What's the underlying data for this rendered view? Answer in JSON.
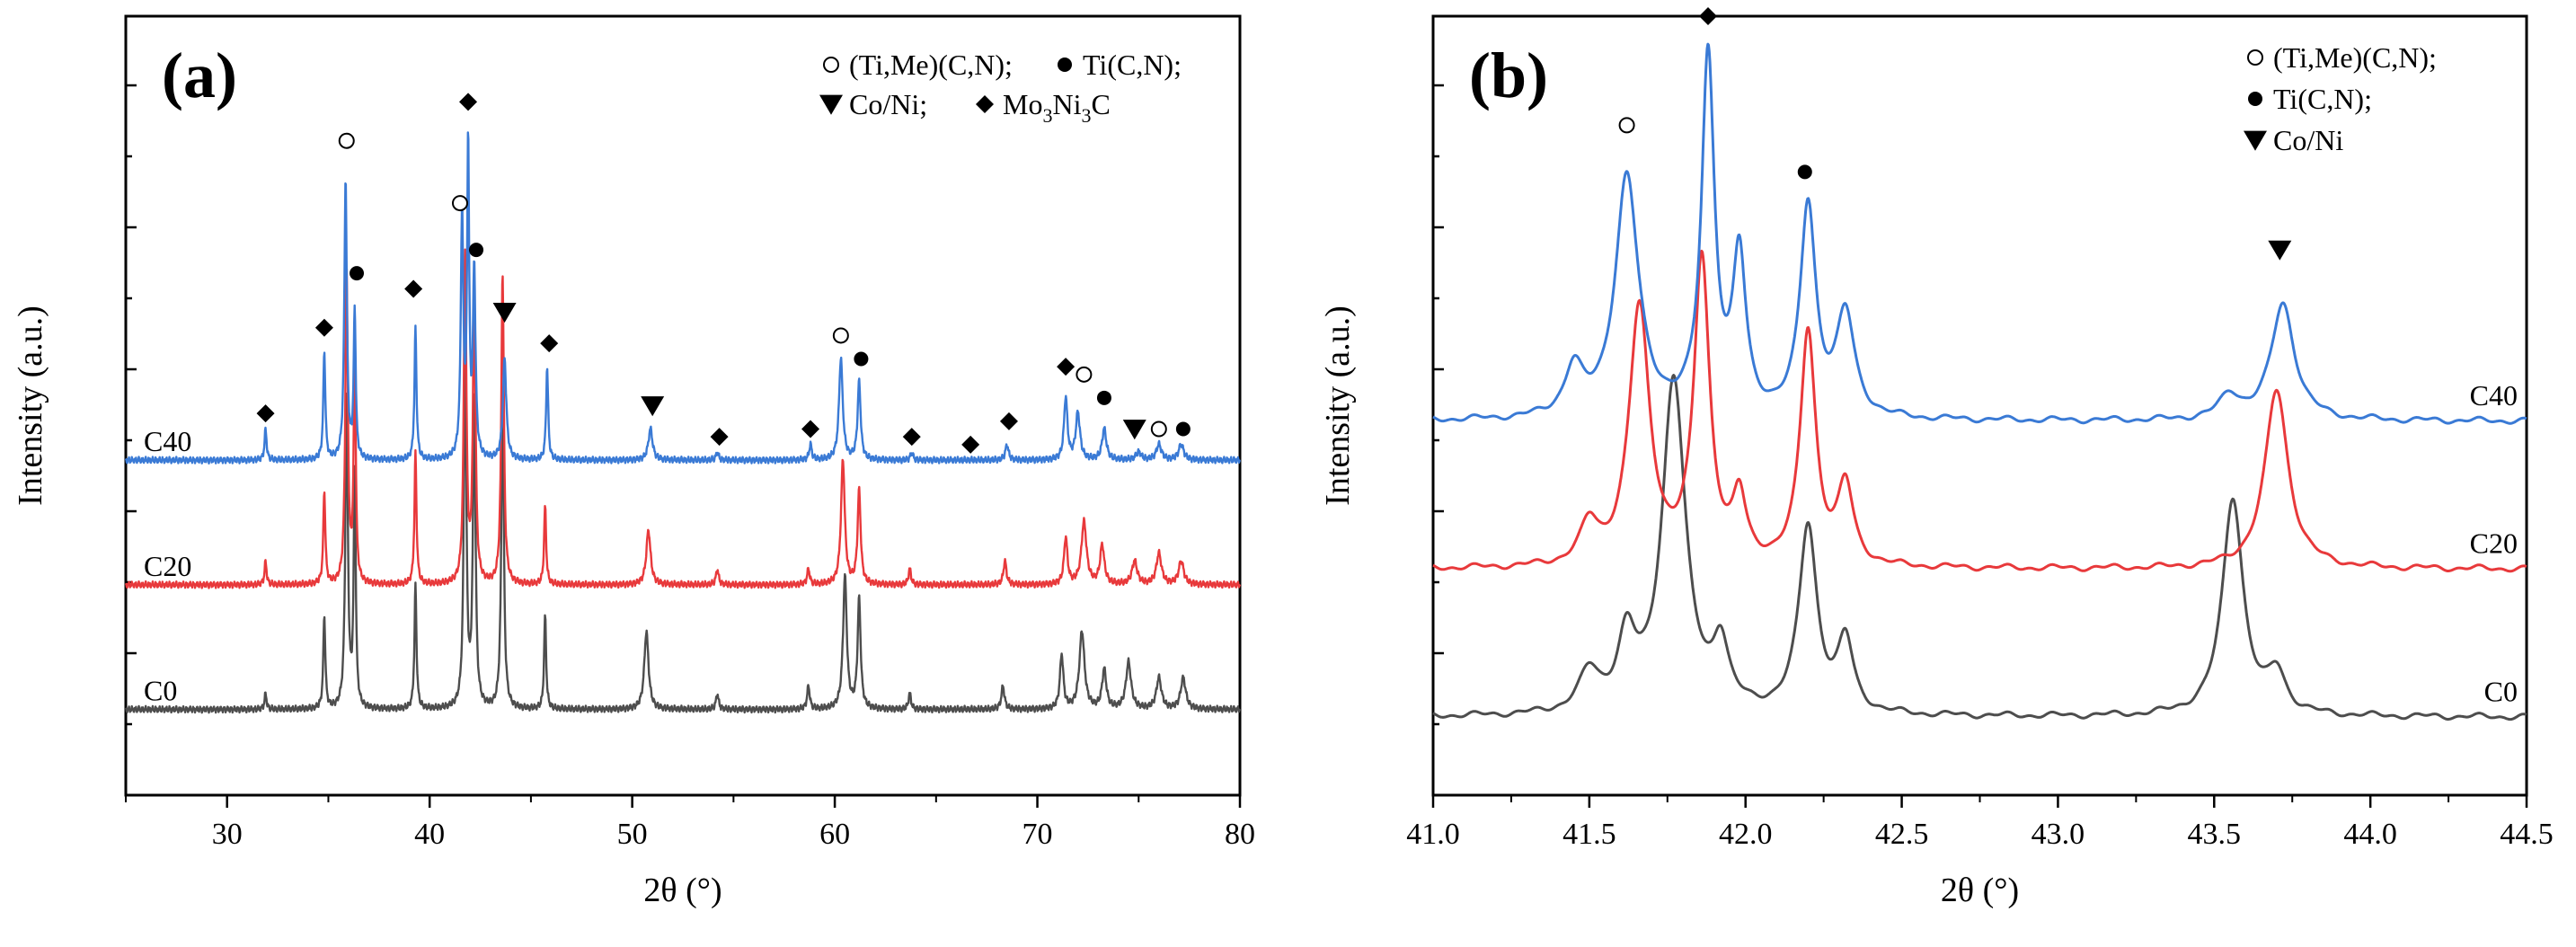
{
  "chart_data": [
    {
      "type": "line",
      "panel_label": "(a)",
      "xlabel": "2θ (°)",
      "ylabel": "Intensity (a.u.)",
      "xlim": [
        25,
        80
      ],
      "xticks": [
        "30",
        "40",
        "50",
        "60",
        "70",
        "80"
      ],
      "grid": false,
      "legend_placement": "top-right",
      "legend": [
        {
          "symbol": "open-circle",
          "prefix": "(Ti,Me)(C,N); ",
          "name": ""
        },
        {
          "symbol": "filled-circle",
          "prefix": "Ti(C,N);",
          "name": ""
        },
        {
          "symbol": "down-triangle",
          "prefix": "Co/Ni; ",
          "name": ""
        },
        {
          "symbol": "diamond",
          "prefix": "Mo",
          "sub1": "3",
          "mid": "Ni",
          "sub2": "3",
          "suffix": "C"
        }
      ],
      "series": [
        {
          "name": "C0",
          "color": "#4d4d4d",
          "baseline": 0.11,
          "peaks": [
            {
              "x": 31.9,
              "h": 0.02,
              "w": 0.12
            },
            {
              "x": 34.8,
              "h": 0.12,
              "w": 0.12
            },
            {
              "x": 35.9,
              "h": 0.4,
              "w": 0.15
            },
            {
              "x": 36.3,
              "h": 0.3,
              "w": 0.12
            },
            {
              "x": 39.3,
              "h": 0.16,
              "w": 0.12
            },
            {
              "x": 41.75,
              "h": 0.45,
              "w": 0.15
            },
            {
              "x": 42.2,
              "h": 0.4,
              "w": 0.15
            },
            {
              "x": 43.6,
              "h": 0.4,
              "w": 0.15
            },
            {
              "x": 45.7,
              "h": 0.12,
              "w": 0.12
            },
            {
              "x": 50.7,
              "h": 0.1,
              "w": 0.25
            },
            {
              "x": 54.2,
              "h": 0.02,
              "w": 0.15
            },
            {
              "x": 58.7,
              "h": 0.03,
              "w": 0.15
            },
            {
              "x": 60.5,
              "h": 0.17,
              "w": 0.22
            },
            {
              "x": 61.2,
              "h": 0.14,
              "w": 0.18
            },
            {
              "x": 63.7,
              "h": 0.02,
              "w": 0.15
            },
            {
              "x": 68.3,
              "h": 0.03,
              "w": 0.18
            },
            {
              "x": 71.2,
              "h": 0.07,
              "w": 0.2
            },
            {
              "x": 72.2,
              "h": 0.1,
              "w": 0.3
            },
            {
              "x": 73.3,
              "h": 0.05,
              "w": 0.25
            },
            {
              "x": 74.5,
              "h": 0.06,
              "w": 0.3
            },
            {
              "x": 76.0,
              "h": 0.04,
              "w": 0.3
            },
            {
              "x": 77.2,
              "h": 0.04,
              "w": 0.3
            }
          ]
        },
        {
          "name": "C20",
          "color": "#e8393b",
          "baseline": 0.27,
          "peaks": [
            {
              "x": 31.9,
              "h": 0.03,
              "w": 0.12
            },
            {
              "x": 34.8,
              "h": 0.12,
              "w": 0.12
            },
            {
              "x": 35.9,
              "h": 0.4,
              "w": 0.15
            },
            {
              "x": 36.3,
              "h": 0.3,
              "w": 0.12
            },
            {
              "x": 39.3,
              "h": 0.17,
              "w": 0.12
            },
            {
              "x": 41.75,
              "h": 0.42,
              "w": 0.15
            },
            {
              "x": 42.2,
              "h": 0.38,
              "w": 0.15
            },
            {
              "x": 43.6,
              "h": 0.4,
              "w": 0.15
            },
            {
              "x": 45.7,
              "h": 0.1,
              "w": 0.12
            },
            {
              "x": 50.8,
              "h": 0.07,
              "w": 0.25
            },
            {
              "x": 54.2,
              "h": 0.02,
              "w": 0.15
            },
            {
              "x": 58.7,
              "h": 0.02,
              "w": 0.15
            },
            {
              "x": 60.4,
              "h": 0.16,
              "w": 0.22
            },
            {
              "x": 61.2,
              "h": 0.12,
              "w": 0.18
            },
            {
              "x": 63.7,
              "h": 0.02,
              "w": 0.15
            },
            {
              "x": 68.4,
              "h": 0.03,
              "w": 0.18
            },
            {
              "x": 71.4,
              "h": 0.06,
              "w": 0.2
            },
            {
              "x": 72.3,
              "h": 0.08,
              "w": 0.3
            },
            {
              "x": 73.2,
              "h": 0.05,
              "w": 0.25
            },
            {
              "x": 74.8,
              "h": 0.03,
              "w": 0.3
            },
            {
              "x": 76.0,
              "h": 0.04,
              "w": 0.3
            },
            {
              "x": 77.1,
              "h": 0.03,
              "w": 0.3
            }
          ]
        },
        {
          "name": "C40",
          "color": "#3a7ad5",
          "baseline": 0.43,
          "peaks": [
            {
              "x": 31.9,
              "h": 0.04,
              "w": 0.12
            },
            {
              "x": 34.8,
              "h": 0.14,
              "w": 0.12
            },
            {
              "x": 35.85,
              "h": 0.36,
              "w": 0.15
            },
            {
              "x": 36.3,
              "h": 0.19,
              "w": 0.12
            },
            {
              "x": 39.3,
              "h": 0.17,
              "w": 0.12
            },
            {
              "x": 41.6,
              "h": 0.31,
              "w": 0.15
            },
            {
              "x": 41.9,
              "h": 0.4,
              "w": 0.12
            },
            {
              "x": 42.2,
              "h": 0.24,
              "w": 0.15
            },
            {
              "x": 43.7,
              "h": 0.13,
              "w": 0.2
            },
            {
              "x": 45.8,
              "h": 0.12,
              "w": 0.12
            },
            {
              "x": 50.9,
              "h": 0.04,
              "w": 0.25
            },
            {
              "x": 54.2,
              "h": 0.01,
              "w": 0.15
            },
            {
              "x": 58.8,
              "h": 0.02,
              "w": 0.15
            },
            {
              "x": 60.3,
              "h": 0.13,
              "w": 0.22
            },
            {
              "x": 61.2,
              "h": 0.1,
              "w": 0.18
            },
            {
              "x": 63.8,
              "h": 0.01,
              "w": 0.15
            },
            {
              "x": 68.5,
              "h": 0.02,
              "w": 0.18
            },
            {
              "x": 71.4,
              "h": 0.08,
              "w": 0.2
            },
            {
              "x": 72.0,
              "h": 0.06,
              "w": 0.25
            },
            {
              "x": 73.3,
              "h": 0.04,
              "w": 0.25
            },
            {
              "x": 75.0,
              "h": 0.01,
              "w": 0.3
            },
            {
              "x": 76.0,
              "h": 0.02,
              "w": 0.3
            },
            {
              "x": 77.1,
              "h": 0.02,
              "w": 0.3
            }
          ]
        }
      ],
      "markers": [
        {
          "symbol": "diamond",
          "x": 31.9,
          "y": 0.49
        },
        {
          "symbol": "diamond",
          "x": 34.8,
          "y": 0.6
        },
        {
          "symbol": "open-circle",
          "x": 35.9,
          "y": 0.84
        },
        {
          "symbol": "filled-circle",
          "x": 36.4,
          "y": 0.67
        },
        {
          "symbol": "diamond",
          "x": 39.2,
          "y": 0.65
        },
        {
          "symbol": "open-circle",
          "x": 41.5,
          "y": 0.76
        },
        {
          "symbol": "diamond",
          "x": 41.9,
          "y": 0.89
        },
        {
          "symbol": "filled-circle",
          "x": 42.3,
          "y": 0.7
        },
        {
          "symbol": "down-triangle",
          "x": 43.7,
          "y": 0.62
        },
        {
          "symbol": "diamond",
          "x": 45.9,
          "y": 0.58
        },
        {
          "symbol": "down-triangle",
          "x": 51.0,
          "y": 0.5
        },
        {
          "symbol": "diamond",
          "x": 54.3,
          "y": 0.46
        },
        {
          "symbol": "diamond",
          "x": 58.8,
          "y": 0.47
        },
        {
          "symbol": "open-circle",
          "x": 60.3,
          "y": 0.59
        },
        {
          "symbol": "filled-circle",
          "x": 61.3,
          "y": 0.56
        },
        {
          "symbol": "diamond",
          "x": 63.8,
          "y": 0.46
        },
        {
          "symbol": "diamond",
          "x": 66.7,
          "y": 0.45
        },
        {
          "symbol": "diamond",
          "x": 68.6,
          "y": 0.48
        },
        {
          "symbol": "diamond",
          "x": 71.4,
          "y": 0.55
        },
        {
          "symbol": "open-circle",
          "x": 72.3,
          "y": 0.54
        },
        {
          "symbol": "filled-circle",
          "x": 73.3,
          "y": 0.51
        },
        {
          "symbol": "down-triangle",
          "x": 74.8,
          "y": 0.47
        },
        {
          "symbol": "open-circle",
          "x": 76.0,
          "y": 0.47
        },
        {
          "symbol": "filled-circle",
          "x": 77.2,
          "y": 0.47
        }
      ]
    },
    {
      "type": "line",
      "panel_label": "(b)",
      "xlabel": "2θ (°)",
      "ylabel": "Intensity (a.u.)",
      "xlim": [
        41.0,
        44.5
      ],
      "xticks": [
        "41.0",
        "41.5",
        "42.0",
        "42.5",
        "43.0",
        "43.5",
        "44.0",
        "44.5"
      ],
      "grid": false,
      "legend_placement": "top-right",
      "legend": [
        {
          "symbol": "open-circle",
          "prefix": "(Ti,Me)(C,N);"
        },
        {
          "symbol": "filled-circle",
          "prefix": "Ti(C,N);"
        },
        {
          "symbol": "down-triangle",
          "prefix": "Co/Ni"
        }
      ],
      "series": [
        {
          "name": "C0",
          "color": "#4d4d4d",
          "baseline": 0.1,
          "peaks": [
            {
              "x": 41.5,
              "h": 0.05,
              "w": 0.08
            },
            {
              "x": 41.77,
              "h": 0.43,
              "w": 0.09
            },
            {
              "x": 41.62,
              "h": 0.09,
              "w": 0.07
            },
            {
              "x": 41.92,
              "h": 0.08,
              "w": 0.06
            },
            {
              "x": 42.2,
              "h": 0.24,
              "w": 0.07
            },
            {
              "x": 42.32,
              "h": 0.09,
              "w": 0.06
            },
            {
              "x": 43.56,
              "h": 0.28,
              "w": 0.08
            },
            {
              "x": 43.7,
              "h": 0.05,
              "w": 0.07
            }
          ]
        },
        {
          "name": "C20",
          "color": "#e8393b",
          "baseline": 0.29,
          "peaks": [
            {
              "x": 41.66,
              "h": 0.33,
              "w": 0.08
            },
            {
              "x": 41.5,
              "h": 0.05,
              "w": 0.07
            },
            {
              "x": 41.86,
              "h": 0.39,
              "w": 0.06
            },
            {
              "x": 41.98,
              "h": 0.08,
              "w": 0.05
            },
            {
              "x": 42.2,
              "h": 0.3,
              "w": 0.06
            },
            {
              "x": 42.32,
              "h": 0.1,
              "w": 0.06
            },
            {
              "x": 43.7,
              "h": 0.23,
              "w": 0.09
            }
          ]
        },
        {
          "name": "C40",
          "color": "#3a7ad5",
          "baseline": 0.48,
          "peaks": [
            {
              "x": 41.62,
              "h": 0.31,
              "w": 0.09
            },
            {
              "x": 41.45,
              "h": 0.06,
              "w": 0.07
            },
            {
              "x": 41.88,
              "h": 0.46,
              "w": 0.05
            },
            {
              "x": 41.98,
              "h": 0.2,
              "w": 0.05
            },
            {
              "x": 42.2,
              "h": 0.27,
              "w": 0.06
            },
            {
              "x": 42.32,
              "h": 0.13,
              "w": 0.07
            },
            {
              "x": 43.72,
              "h": 0.15,
              "w": 0.09
            },
            {
              "x": 43.55,
              "h": 0.03,
              "w": 0.08
            }
          ]
        }
      ],
      "markers": [
        {
          "symbol": "open-circle",
          "x": 41.62,
          "y": 0.86
        },
        {
          "symbol": "diamond",
          "x": 41.88,
          "y": 1.0
        },
        {
          "symbol": "filled-circle",
          "x": 42.19,
          "y": 0.8
        },
        {
          "symbol": "down-triangle",
          "x": 43.71,
          "y": 0.7
        }
      ]
    }
  ]
}
